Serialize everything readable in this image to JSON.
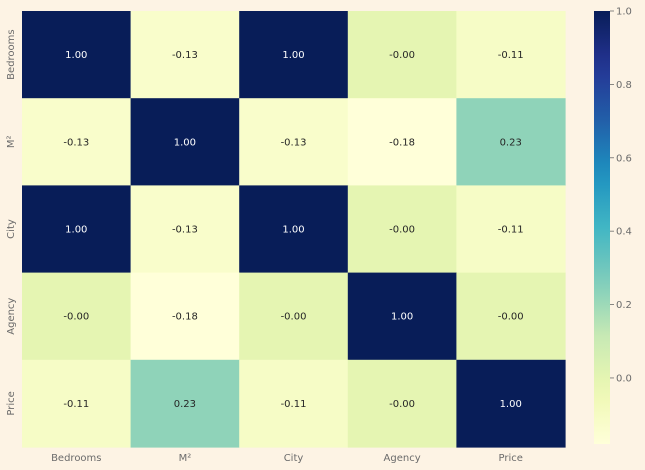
{
  "chart_data": {
    "type": "heatmap",
    "title": "",
    "xlabel": "",
    "ylabel": "",
    "x_labels": [
      "Bedrooms",
      "M²",
      "City",
      "Agency",
      "Price"
    ],
    "y_labels": [
      "Bedrooms",
      "M²",
      "City",
      "Agency",
      "Price"
    ],
    "values": [
      [
        1.0,
        -0.13,
        1.0,
        -0.0,
        -0.11
      ],
      [
        -0.13,
        1.0,
        -0.13,
        -0.18,
        0.23
      ],
      [
        1.0,
        -0.13,
        1.0,
        -0.0,
        -0.11
      ],
      [
        -0.0,
        -0.18,
        -0.0,
        1.0,
        -0.0
      ],
      [
        -0.11,
        0.23,
        -0.11,
        -0.0,
        1.0
      ]
    ],
    "value_labels": [
      [
        "1.00",
        "-0.13",
        "1.00",
        "-0.00",
        "-0.11"
      ],
      [
        "-0.13",
        "1.00",
        "-0.13",
        "-0.18",
        "0.23"
      ],
      [
        "1.00",
        "-0.13",
        "1.00",
        "-0.00",
        "-0.11"
      ],
      [
        "-0.00",
        "-0.18",
        "-0.00",
        "1.00",
        "-0.00"
      ],
      [
        "-0.11",
        "0.23",
        "-0.11",
        "-0.00",
        "1.00"
      ]
    ],
    "colorbar": {
      "min": -0.18,
      "max": 1.0,
      "ticks": [
        "0.0",
        "0.2",
        "0.4",
        "0.6",
        "0.8",
        "1.0"
      ],
      "colormap": "YlGnBu"
    },
    "grid": false,
    "legend": "colorbar-right"
  }
}
